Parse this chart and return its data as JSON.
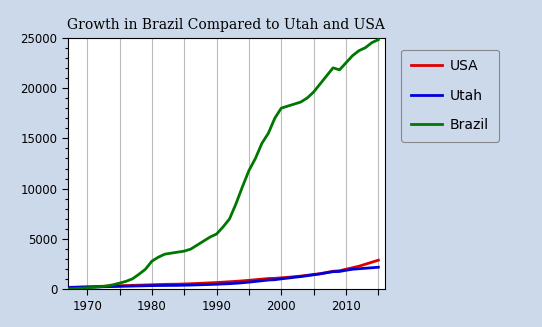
{
  "title": "Growth in Brazil Compared to Utah and USA",
  "xlim": [
    1967,
    2016
  ],
  "ylim": [
    0,
    25000
  ],
  "yticks": [
    0,
    5000,
    10000,
    15000,
    20000,
    25000
  ],
  "ytick_labels": [
    "0",
    "5000",
    "10000",
    "15000",
    "20000",
    "25000"
  ],
  "xticks": [
    1970,
    1975,
    1980,
    1985,
    1990,
    1995,
    2000,
    2005,
    2010,
    2015
  ],
  "xtick_labels": [
    "1970",
    "",
    "1980",
    "",
    "1990",
    "",
    "2000",
    "",
    "2010",
    ""
  ],
  "xgrid": [
    1970,
    1975,
    1980,
    1985,
    1990,
    1995,
    2000,
    2005,
    2010,
    2015
  ],
  "usa_color": "#dd0000",
  "utah_color": "#0000dd",
  "brazil_color": "#007700",
  "line_width": 2.0,
  "years": [
    1967,
    1968,
    1969,
    1970,
    1971,
    1972,
    1973,
    1974,
    1975,
    1976,
    1977,
    1978,
    1979,
    1980,
    1981,
    1982,
    1983,
    1984,
    1985,
    1986,
    1987,
    1988,
    1989,
    1990,
    1991,
    1992,
    1993,
    1994,
    1995,
    1996,
    1997,
    1998,
    1999,
    2000,
    2001,
    2002,
    2003,
    2004,
    2005,
    2006,
    2007,
    2008,
    2009,
    2010,
    2011,
    2012,
    2013,
    2014,
    2015
  ],
  "brazil": [
    50,
    80,
    120,
    160,
    200,
    260,
    340,
    460,
    620,
    800,
    1050,
    1500,
    2000,
    2800,
    3200,
    3500,
    3600,
    3700,
    3800,
    4000,
    4400,
    4800,
    5200,
    5500,
    6200,
    7000,
    8500,
    10200,
    11800,
    13000,
    14500,
    15500,
    17000,
    18000,
    18200,
    18400,
    18600,
    19000,
    19600,
    20400,
    21200,
    22000,
    21800,
    22500,
    23200,
    23700,
    24000,
    24500,
    24800
  ],
  "usa": [
    200,
    220,
    240,
    260,
    280,
    300,
    320,
    340,
    360,
    380,
    400,
    420,
    440,
    460,
    480,
    500,
    510,
    520,
    540,
    560,
    590,
    620,
    650,
    680,
    720,
    760,
    800,
    850,
    900,
    960,
    1020,
    1080,
    1100,
    1150,
    1200,
    1260,
    1320,
    1400,
    1480,
    1560,
    1680,
    1800,
    1850,
    2000,
    2150,
    2300,
    2500,
    2700,
    2900
  ],
  "utah": [
    180,
    195,
    210,
    225,
    240,
    255,
    270,
    285,
    300,
    315,
    330,
    345,
    360,
    375,
    385,
    390,
    395,
    400,
    415,
    430,
    450,
    470,
    490,
    510,
    540,
    570,
    610,
    660,
    720,
    790,
    860,
    930,
    960,
    1050,
    1120,
    1200,
    1270,
    1360,
    1450,
    1540,
    1650,
    1760,
    1780,
    1900,
    2000,
    2050,
    2100,
    2150,
    2200
  ],
  "plot_bg": "#ffffff",
  "outer_bg": "#ccd9ea",
  "legend_entries": [
    "USA",
    "Utah",
    "Brazil"
  ],
  "title_fontsize": 10,
  "tick_fontsize": 8.5,
  "legend_fontsize": 10
}
